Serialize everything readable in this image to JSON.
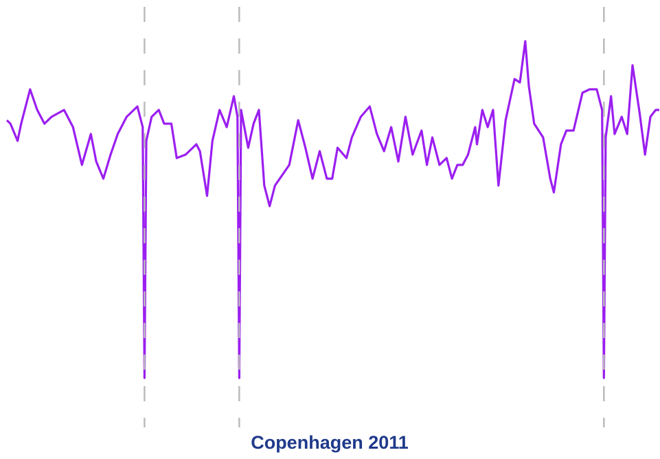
{
  "chart_data": {
    "type": "line",
    "title": "Copenhagen 2011",
    "xlim": [
      0,
      365
    ],
    "ylim": [
      0,
      102
    ],
    "markers": [
      77,
      130,
      334
    ],
    "marker_color": "#bbbbbb",
    "series": [
      {
        "color": "#9b1ff0",
        "x": [
          0,
          2,
          6,
          8,
          13,
          17,
          21,
          25,
          32,
          37,
          42,
          47,
          50,
          54,
          58,
          62,
          67,
          71,
          73,
          76,
          77,
          78,
          81,
          85,
          88,
          92,
          95,
          100,
          106,
          108,
          112,
          115,
          119,
          123,
          127,
          129,
          130,
          131,
          135,
          138,
          141,
          144,
          147,
          150,
          154,
          158,
          163,
          167,
          171,
          175,
          179,
          182,
          185,
          190,
          193,
          198,
          203,
          207,
          211,
          215,
          219,
          223,
          227,
          232,
          235,
          238,
          242,
          246,
          249,
          252,
          255,
          258,
          262,
          263,
          266,
          269,
          272,
          275,
          279,
          284,
          287,
          290,
          292,
          295,
          300,
          304,
          306,
          310,
          313,
          317,
          322,
          326,
          330,
          333,
          334,
          335,
          338,
          340,
          344,
          347,
          350,
          354,
          357,
          360,
          363,
          365
        ],
        "values": [
          76,
          75,
          70,
          75,
          85,
          79,
          75,
          77,
          79,
          74,
          63,
          72,
          64,
          59,
          66,
          72,
          77,
          79,
          80,
          74,
          1,
          70,
          77,
          79,
          75,
          75,
          65,
          66,
          69,
          67,
          54,
          70,
          79,
          74,
          83,
          77,
          1,
          79,
          68,
          75,
          79,
          57,
          51,
          57,
          60,
          63,
          76,
          68,
          59,
          67,
          59,
          59,
          68,
          65,
          71,
          77,
          80,
          72,
          67,
          74,
          64,
          77,
          66,
          73,
          63,
          71,
          63,
          65,
          59,
          63,
          63,
          66,
          74,
          69,
          79,
          74,
          79,
          57,
          76,
          88,
          87,
          99,
          86,
          75,
          71,
          59,
          55,
          69,
          73,
          73,
          84,
          85,
          85,
          79,
          1,
          71,
          83,
          72,
          77,
          72,
          92,
          78,
          66,
          77,
          79,
          79
        ]
      }
    ]
  }
}
